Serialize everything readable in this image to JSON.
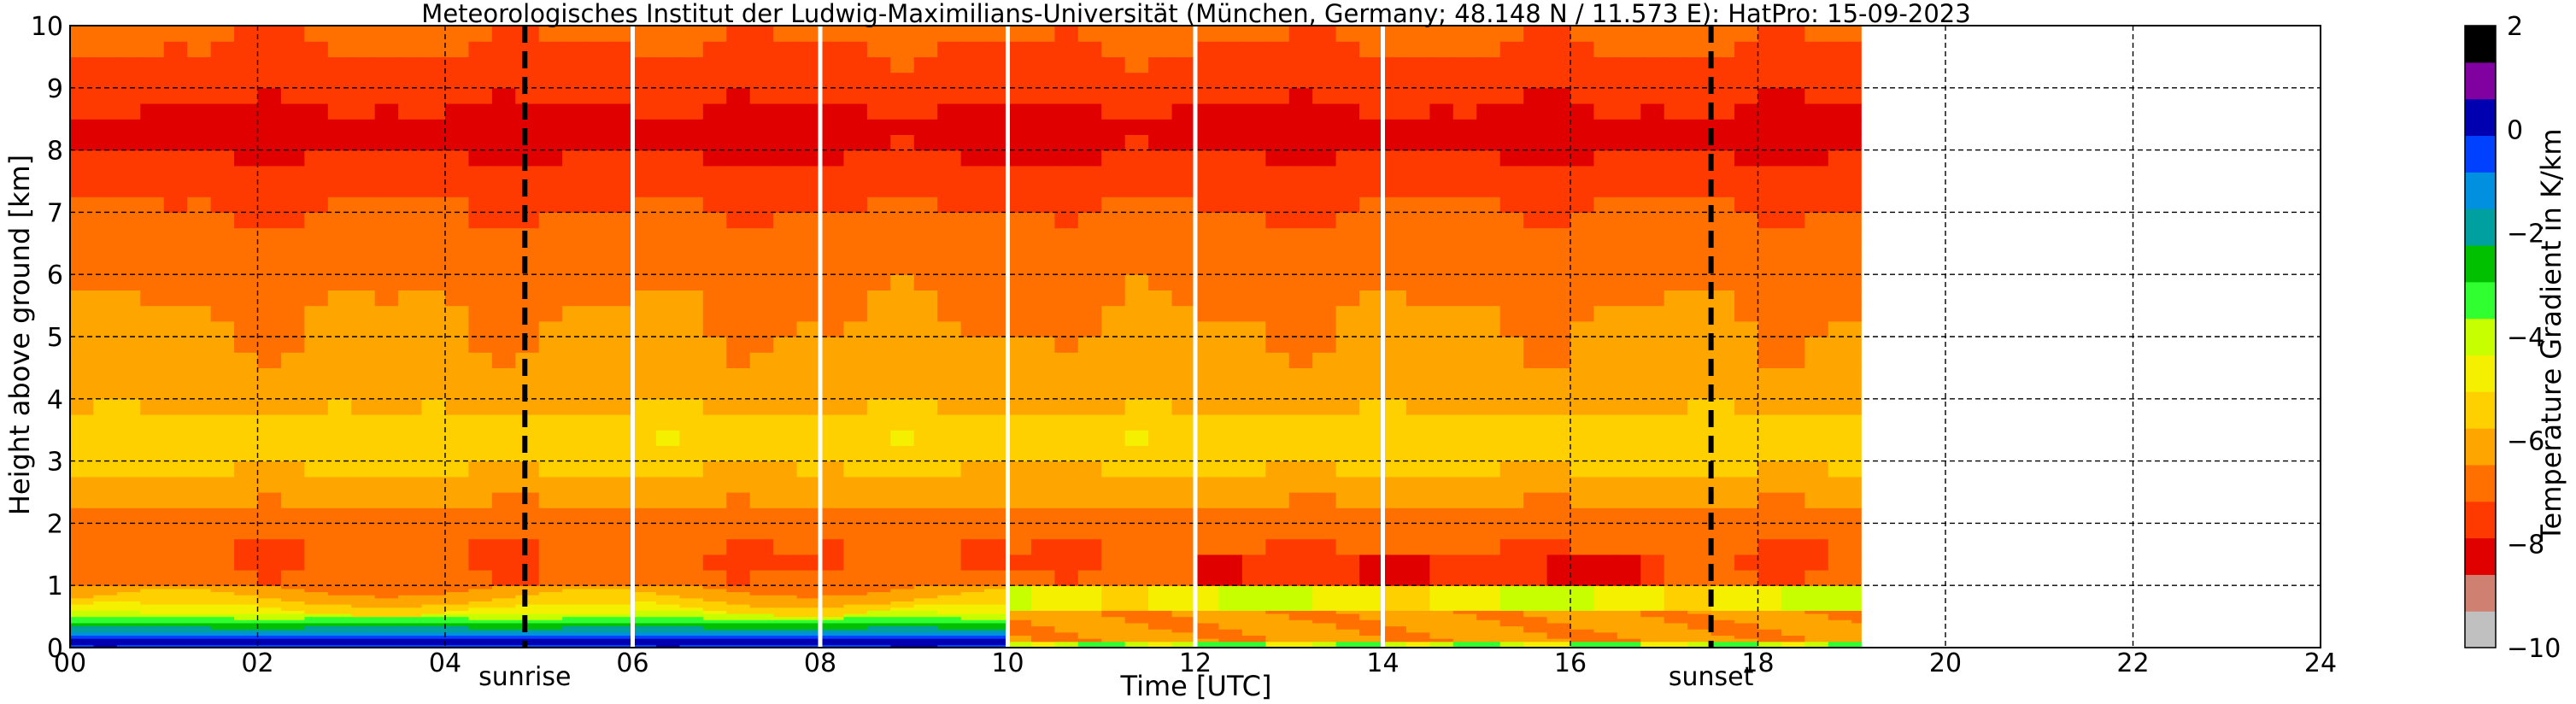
{
  "chart_data": {
    "type": "heatmap",
    "title": "Meteorologisches Institut der Ludwig-Maximilians-Universität (München, Germany; 48.148 N / 11.573 E):    HatPro: 15-09-2023",
    "xlabel": "Time [UTC]",
    "ylabel": "Height above ground [km]",
    "xlim": [
      0,
      24
    ],
    "ylim": [
      0,
      10
    ],
    "x_ticks": [
      "00",
      "02",
      "04",
      "06",
      "08",
      "10",
      "12",
      "14",
      "16",
      "18",
      "20",
      "22",
      "24"
    ],
    "y_ticks": [
      "0",
      "1",
      "2",
      "3",
      "4",
      "5",
      "6",
      "7",
      "8",
      "9",
      "10"
    ],
    "grid": "on",
    "data_extent_hours": [
      0,
      19.1
    ],
    "colorbar": {
      "label": "Temperature Gradient in K/km",
      "range": [
        -10,
        2
      ],
      "ticks": [
        "2",
        "0",
        "−2",
        "−4",
        "−6",
        "−8",
        "−10"
      ],
      "colors_bottom_to_top": [
        "#c0c0c0",
        "#d08070",
        "#e00000",
        "#ff3a00",
        "#ff7000",
        "#ffa500",
        "#ffd000",
        "#f4f000",
        "#c8ff00",
        "#30ff30",
        "#00c000",
        "#00a0a0",
        "#0090e0",
        "#0040ff",
        "#0000b0",
        "#8000a0",
        "#000000"
      ]
    },
    "profile": [
      {
        "h": 0.0,
        "v": -0.5
      },
      {
        "h": 0.1,
        "v": 0.5
      },
      {
        "h": 0.2,
        "v": -1.0
      },
      {
        "h": 0.35,
        "v": -2.5
      },
      {
        "h": 0.55,
        "v": -4.3
      },
      {
        "h": 0.8,
        "v": -5.5
      },
      {
        "h": 1.0,
        "v": -7.0
      },
      {
        "h": 1.5,
        "v": -7.2
      },
      {
        "h": 2.0,
        "v": -6.9
      },
      {
        "h": 2.6,
        "v": -6.0
      },
      {
        "h": 3.0,
        "v": -5.6
      },
      {
        "h": 3.4,
        "v": -5.2
      },
      {
        "h": 3.8,
        "v": -5.8
      },
      {
        "h": 4.5,
        "v": -6.3
      },
      {
        "h": 5.5,
        "v": -6.5
      },
      {
        "h": 6.5,
        "v": -6.9
      },
      {
        "h": 7.3,
        "v": -7.3
      },
      {
        "h": 7.8,
        "v": -7.8
      },
      {
        "h": 8.3,
        "v": -8.2
      },
      {
        "h": 8.8,
        "v": -7.8
      },
      {
        "h": 9.3,
        "v": -7.4
      },
      {
        "h": 10.0,
        "v": -7.0
      }
    ],
    "time_segments": [
      {
        "start": 0.0,
        "end": 6.0,
        "low_level": "inversion"
      },
      {
        "start": 6.0,
        "end": 8.0,
        "low_level": "inversion"
      },
      {
        "start": 8.0,
        "end": 10.0,
        "low_level": "inversion"
      },
      {
        "start": 10.0,
        "end": 12.0,
        "low_level": "mixed"
      },
      {
        "start": 12.0,
        "end": 14.0,
        "low_level": "mixed"
      },
      {
        "start": 14.0,
        "end": 19.1,
        "low_level": "mixed"
      }
    ],
    "gap_lines": [
      6.0,
      8.0,
      10.0,
      12.0,
      14.0
    ],
    "events": [
      {
        "label": "sunrise",
        "time": 4.85
      },
      {
        "label": "sunset",
        "time": 17.5
      }
    ]
  }
}
